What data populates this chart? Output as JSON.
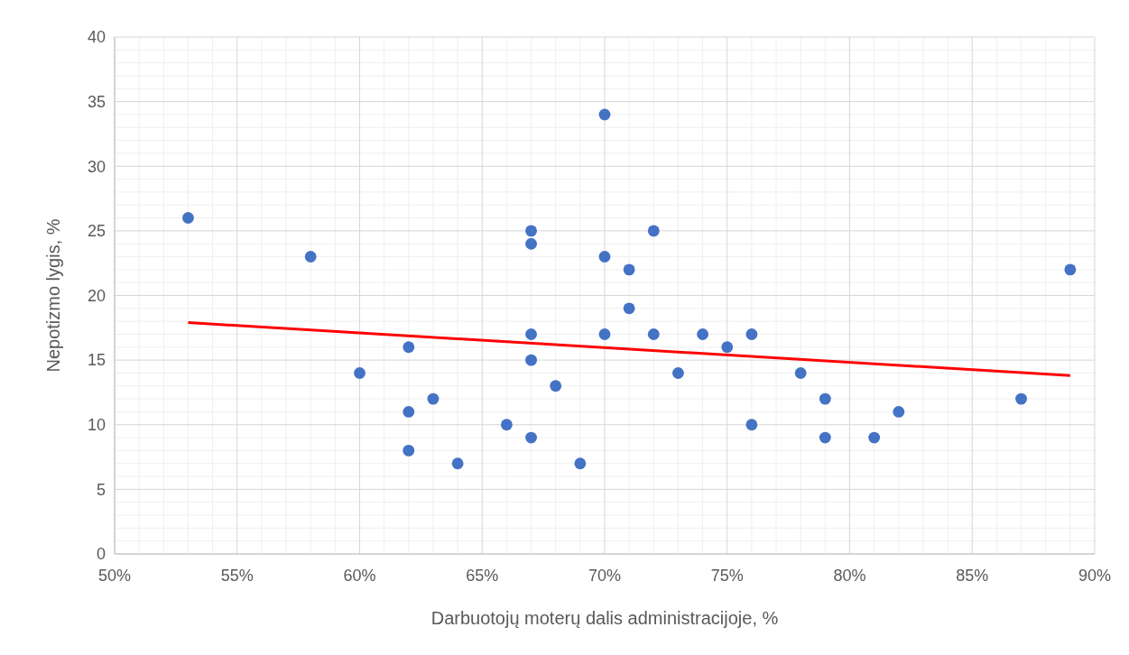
{
  "chart_data": {
    "type": "scatter",
    "xlabel": "Darbuotojų moterų dalis administracijoje, %",
    "ylabel": "Nepotizmo lygis, %",
    "xlim": [
      50,
      90
    ],
    "ylim": [
      0,
      40
    ],
    "xticks": [
      {
        "value": 50,
        "label": "50%"
      },
      {
        "value": 55,
        "label": "55%"
      },
      {
        "value": 60,
        "label": "60%"
      },
      {
        "value": 65,
        "label": "65%"
      },
      {
        "value": 70,
        "label": "70%"
      },
      {
        "value": 75,
        "label": "75%"
      },
      {
        "value": 80,
        "label": "80%"
      },
      {
        "value": 85,
        "label": "85%"
      },
      {
        "value": 90,
        "label": "90%"
      }
    ],
    "yticks": [
      0,
      5,
      10,
      15,
      20,
      25,
      30,
      35,
      40
    ],
    "grid": true,
    "series": [
      {
        "marker": "circle",
        "color": "#4472c4",
        "x": [
          53,
          58,
          60,
          62,
          62,
          62,
          63,
          64,
          66,
          67,
          67,
          67,
          67,
          67,
          68,
          69,
          70,
          70,
          70,
          71,
          71,
          72,
          72,
          73,
          74,
          75,
          76,
          76,
          78,
          79,
          79,
          81,
          82,
          87,
          89
        ],
        "values": [
          26,
          23,
          14,
          16,
          11,
          8,
          12,
          7,
          10,
          25,
          24,
          17,
          15,
          9,
          13,
          7,
          34,
          23,
          17,
          22,
          19,
          25,
          17,
          14,
          17,
          16,
          17,
          10,
          14,
          12,
          9,
          9,
          11,
          12,
          22
        ]
      },
      {
        "type": "line",
        "color": "#ff0000",
        "x": [
          53,
          89
        ],
        "values": [
          17.9,
          13.8
        ]
      }
    ]
  }
}
